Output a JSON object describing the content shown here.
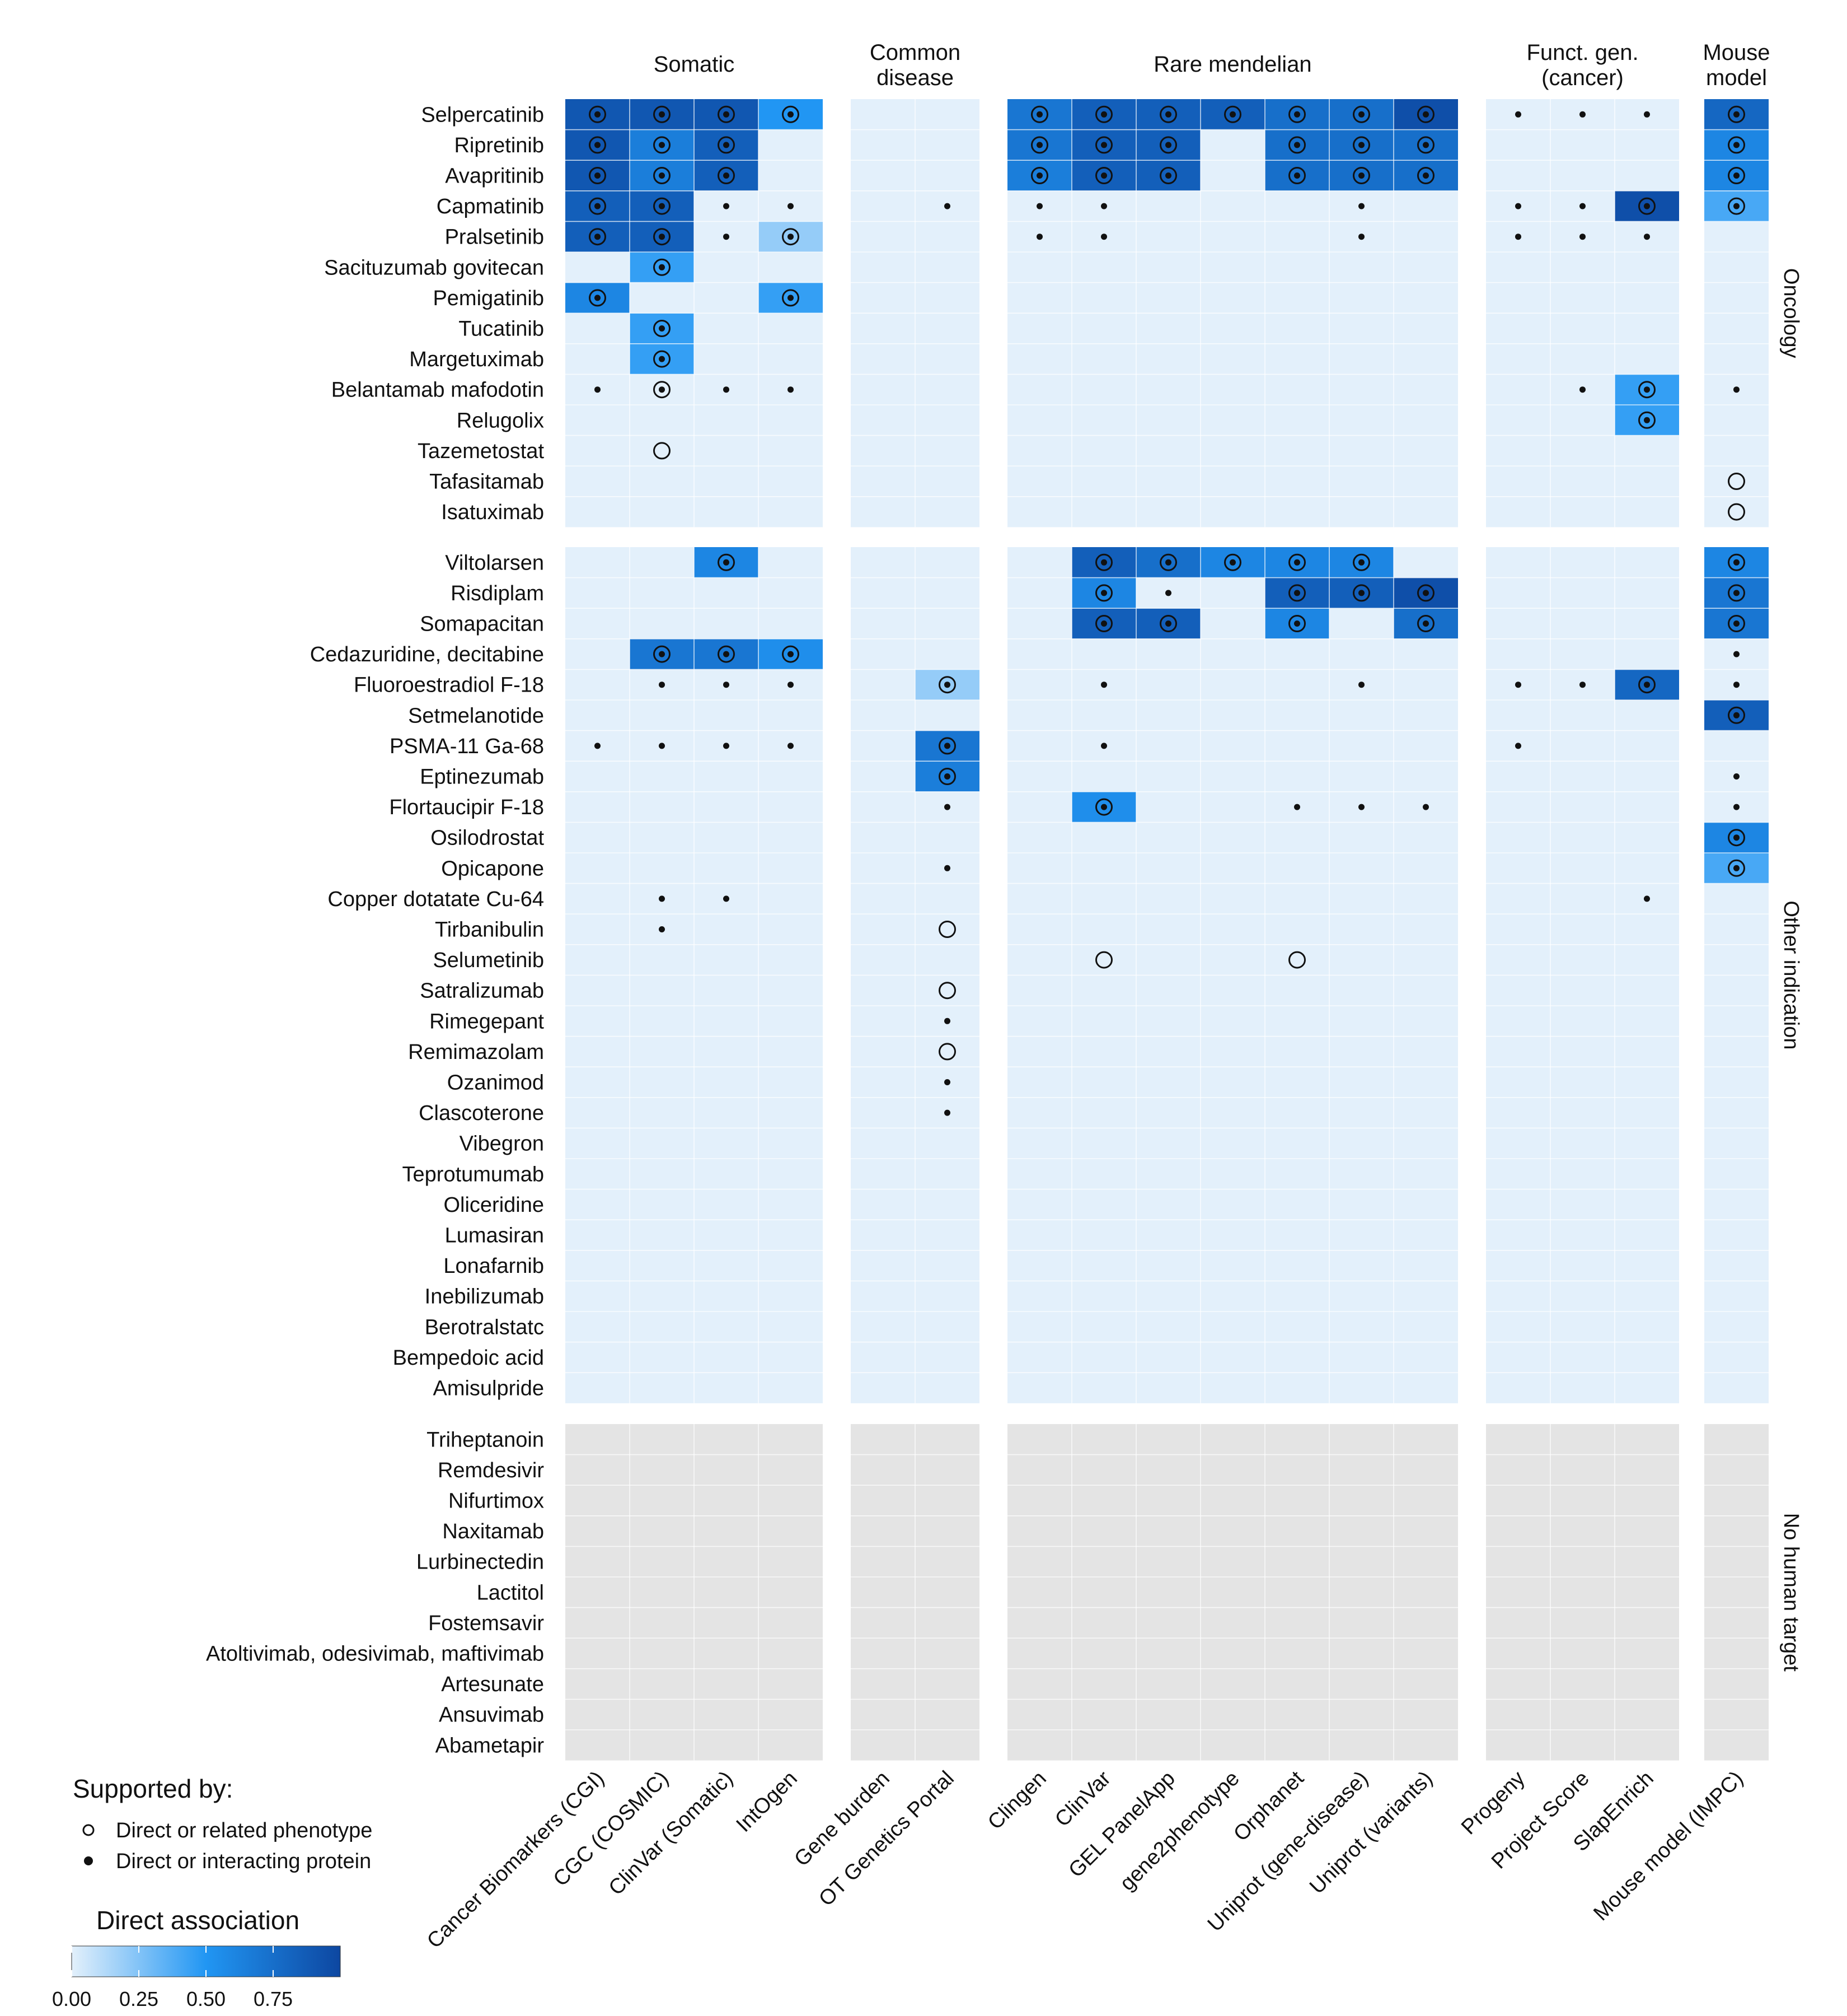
{
  "chart_data": {
    "type": "heatmap",
    "title": "",
    "column_groups": [
      {
        "name": "Somatic",
        "columns": [
          "Cancer Biomarkers (CGI)",
          "CGC (COSMIC)",
          "ClinVar (Somatic)",
          "IntOgen"
        ]
      },
      {
        "name": "Common\ndisease",
        "columns": [
          "Gene burden",
          "OT Genetics Portal"
        ]
      },
      {
        "name": "Rare mendelian",
        "columns": [
          "Clingen",
          "ClinVar",
          "GEL PanelApp",
          "gene2phenotype",
          "Orphanet",
          "Uniprot (gene-disease)",
          "Uniprot (variants)"
        ]
      },
      {
        "name": "Funct. gen.\n(cancer)",
        "columns": [
          "Progeny",
          "Project Score",
          "SlapEnrich"
        ]
      },
      {
        "name": "Mouse\nmodel",
        "columns": [
          "Mouse model (IMPC)"
        ]
      }
    ],
    "row_groups": [
      {
        "name": "Oncology",
        "gray": false,
        "rows": [
          "Selpercatinib",
          "Ripretinib",
          "Avapritinib",
          "Capmatinib",
          "Pralsetinib",
          "Sacituzumab govitecan",
          "Pemigatinib",
          "Tucatinib",
          "Margetuximab",
          "Belantamab mafodotin",
          "Relugolix",
          "Tazemetostat",
          "Tafasitamab",
          "Isatuximab"
        ]
      },
      {
        "name": "Other indication",
        "gray": false,
        "rows": [
          "Viltolarsen",
          "Risdiplam",
          "Somapacitan",
          "Cedazuridine, decitabine",
          "Fluoroestradiol F-18",
          "Setmelanotide",
          "PSMA-11 Ga-68",
          "Eptinezumab",
          "Flortaucipir F-18",
          "Osilodrostat",
          "Opicapone",
          "Copper dotatate Cu-64",
          "Tirbanibulin",
          "Selumetinib",
          "Satralizumab",
          "Rimegepant",
          "Remimazolam",
          "Ozanimod",
          "Clascoterone",
          "Vibegron",
          "Teprotumumab",
          "Oliceridine",
          "Lumasiran",
          "Lonafarnib",
          "Inebilizumab",
          "Berotralstatc",
          "Bempedoic acid",
          "Amisulpride"
        ]
      },
      {
        "name": "No human target",
        "gray": true,
        "rows": [
          "Triheptanoin",
          "Remdesivir",
          "Nifurtimox",
          "Naxitamab",
          "Lurbinectedin",
          "Lactitol",
          "Fostemsavir",
          "Atoltivimab, odesivimab, maftivimab",
          "Artesunate",
          "Ansuvimab",
          "Abametapir"
        ]
      }
    ],
    "cells": [
      [
        "Selpercatinib",
        0,
        0.9,
        "both"
      ],
      [
        "Selpercatinib",
        1,
        0.9,
        "both"
      ],
      [
        "Selpercatinib",
        2,
        0.9,
        "both"
      ],
      [
        "Selpercatinib",
        3,
        0.5,
        "both"
      ],
      [
        "Selpercatinib",
        6,
        0.7,
        "both"
      ],
      [
        "Selpercatinib",
        7,
        0.85,
        "both"
      ],
      [
        "Selpercatinib",
        8,
        0.85,
        "both"
      ],
      [
        "Selpercatinib",
        9,
        0.85,
        "both"
      ],
      [
        "Selpercatinib",
        10,
        0.75,
        "both"
      ],
      [
        "Selpercatinib",
        11,
        0.75,
        "both"
      ],
      [
        "Selpercatinib",
        12,
        0.95,
        "both"
      ],
      [
        "Selpercatinib",
        13,
        0,
        "protein"
      ],
      [
        "Selpercatinib",
        14,
        0,
        "protein"
      ],
      [
        "Selpercatinib",
        15,
        0,
        "protein"
      ],
      [
        "Selpercatinib",
        16,
        0.8,
        "both"
      ],
      [
        "Ripretinib",
        0,
        0.9,
        "both"
      ],
      [
        "Ripretinib",
        1,
        0.65,
        "both"
      ],
      [
        "Ripretinib",
        2,
        0.85,
        "both"
      ],
      [
        "Ripretinib",
        6,
        0.7,
        "both"
      ],
      [
        "Ripretinib",
        7,
        0.85,
        "both"
      ],
      [
        "Ripretinib",
        8,
        0.85,
        "both"
      ],
      [
        "Ripretinib",
        10,
        0.75,
        "both"
      ],
      [
        "Ripretinib",
        11,
        0.75,
        "both"
      ],
      [
        "Ripretinib",
        12,
        0.75,
        "both"
      ],
      [
        "Ripretinib",
        16,
        0.6,
        "both"
      ],
      [
        "Avapritinib",
        0,
        0.9,
        "both"
      ],
      [
        "Avapritinib",
        1,
        0.65,
        "both"
      ],
      [
        "Avapritinib",
        2,
        0.85,
        "both"
      ],
      [
        "Avapritinib",
        6,
        0.65,
        "both"
      ],
      [
        "Avapritinib",
        7,
        0.85,
        "both"
      ],
      [
        "Avapritinib",
        8,
        0.85,
        "both"
      ],
      [
        "Avapritinib",
        10,
        0.75,
        "both"
      ],
      [
        "Avapritinib",
        11,
        0.75,
        "both"
      ],
      [
        "Avapritinib",
        12,
        0.75,
        "both"
      ],
      [
        "Avapritinib",
        16,
        0.6,
        "both"
      ],
      [
        "Capmatinib",
        0,
        0.85,
        "both"
      ],
      [
        "Capmatinib",
        1,
        0.85,
        "both"
      ],
      [
        "Capmatinib",
        2,
        0,
        "protein"
      ],
      [
        "Capmatinib",
        3,
        0,
        "protein"
      ],
      [
        "Capmatinib",
        5,
        0,
        "protein"
      ],
      [
        "Capmatinib",
        6,
        0,
        "protein"
      ],
      [
        "Capmatinib",
        7,
        0,
        "protein"
      ],
      [
        "Capmatinib",
        11,
        0,
        "protein"
      ],
      [
        "Capmatinib",
        13,
        0,
        "protein"
      ],
      [
        "Capmatinib",
        14,
        0,
        "protein"
      ],
      [
        "Capmatinib",
        15,
        0.95,
        "both"
      ],
      [
        "Capmatinib",
        16,
        0.4,
        "both"
      ],
      [
        "Pralsetinib",
        0,
        0.85,
        "both"
      ],
      [
        "Pralsetinib",
        1,
        0.85,
        "both"
      ],
      [
        "Pralsetinib",
        2,
        0,
        "protein"
      ],
      [
        "Pralsetinib",
        3,
        0.2,
        "both"
      ],
      [
        "Pralsetinib",
        6,
        0,
        "protein"
      ],
      [
        "Pralsetinib",
        7,
        0,
        "protein"
      ],
      [
        "Pralsetinib",
        11,
        0,
        "protein"
      ],
      [
        "Pralsetinib",
        13,
        0,
        "protein"
      ],
      [
        "Pralsetinib",
        14,
        0,
        "protein"
      ],
      [
        "Pralsetinib",
        15,
        0,
        "protein"
      ],
      [
        "Sacituzumab govitecan",
        1,
        0.45,
        "both"
      ],
      [
        "Pemigatinib",
        0,
        0.6,
        "both"
      ],
      [
        "Pemigatinib",
        3,
        0.45,
        "both"
      ],
      [
        "Tucatinib",
        1,
        0.45,
        "both"
      ],
      [
        "Margetuximab",
        1,
        0.45,
        "both"
      ],
      [
        "Belantamab mafodotin",
        0,
        0,
        "protein"
      ],
      [
        "Belantamab mafodotin",
        1,
        0,
        "both"
      ],
      [
        "Belantamab mafodotin",
        2,
        0,
        "protein"
      ],
      [
        "Belantamab mafodotin",
        3,
        0,
        "protein"
      ],
      [
        "Belantamab mafodotin",
        14,
        0,
        "protein"
      ],
      [
        "Belantamab mafodotin",
        15,
        0.45,
        "both"
      ],
      [
        "Belantamab mafodotin",
        16,
        0,
        "protein"
      ],
      [
        "Relugolix",
        15,
        0.45,
        "both"
      ],
      [
        "Tazemetostat",
        1,
        0,
        "phenotype"
      ],
      [
        "Tafasitamab",
        16,
        0,
        "phenotype"
      ],
      [
        "Isatuximab",
        16,
        0,
        "phenotype"
      ],
      [
        "Viltolarsen",
        2,
        0.6,
        "both"
      ],
      [
        "Viltolarsen",
        7,
        0.85,
        "both"
      ],
      [
        "Viltolarsen",
        8,
        0.75,
        "both"
      ],
      [
        "Viltolarsen",
        9,
        0.6,
        "both"
      ],
      [
        "Viltolarsen",
        10,
        0.6,
        "both"
      ],
      [
        "Viltolarsen",
        11,
        0.6,
        "both"
      ],
      [
        "Viltolarsen",
        16,
        0.6,
        "both"
      ],
      [
        "Risdiplam",
        7,
        0.6,
        "both"
      ],
      [
        "Risdiplam",
        8,
        0,
        "protein"
      ],
      [
        "Risdiplam",
        10,
        0.85,
        "both"
      ],
      [
        "Risdiplam",
        11,
        0.85,
        "both"
      ],
      [
        "Risdiplam",
        12,
        0.95,
        "both"
      ],
      [
        "Risdiplam",
        16,
        0.7,
        "both"
      ],
      [
        "Somapacitan",
        7,
        0.85,
        "both"
      ],
      [
        "Somapacitan",
        8,
        0.85,
        "both"
      ],
      [
        "Somapacitan",
        10,
        0.6,
        "both"
      ],
      [
        "Somapacitan",
        12,
        0.75,
        "both"
      ],
      [
        "Somapacitan",
        16,
        0.7,
        "both"
      ],
      [
        "Cedazuridine, decitabine",
        1,
        0.7,
        "both"
      ],
      [
        "Cedazuridine, decitabine",
        2,
        0.7,
        "both"
      ],
      [
        "Cedazuridine, decitabine",
        3,
        0.55,
        "both"
      ],
      [
        "Cedazuridine, decitabine",
        16,
        0,
        "protein"
      ],
      [
        "Fluoroestradiol F-18",
        1,
        0,
        "protein"
      ],
      [
        "Fluoroestradiol F-18",
        2,
        0,
        "protein"
      ],
      [
        "Fluoroestradiol F-18",
        3,
        0,
        "protein"
      ],
      [
        "Fluoroestradiol F-18",
        5,
        0.2,
        "both"
      ],
      [
        "Fluoroestradiol F-18",
        7,
        0,
        "protein"
      ],
      [
        "Fluoroestradiol F-18",
        11,
        0,
        "protein"
      ],
      [
        "Fluoroestradiol F-18",
        13,
        0,
        "protein"
      ],
      [
        "Fluoroestradiol F-18",
        14,
        0,
        "protein"
      ],
      [
        "Fluoroestradiol F-18",
        15,
        0.8,
        "both"
      ],
      [
        "Fluoroestradiol F-18",
        16,
        0,
        "protein"
      ],
      [
        "Setmelanotide",
        16,
        0.85,
        "both"
      ],
      [
        "PSMA-11 Ga-68",
        0,
        0,
        "protein"
      ],
      [
        "PSMA-11 Ga-68",
        1,
        0,
        "protein"
      ],
      [
        "PSMA-11 Ga-68",
        2,
        0,
        "protein"
      ],
      [
        "PSMA-11 Ga-68",
        3,
        0,
        "protein"
      ],
      [
        "PSMA-11 Ga-68",
        5,
        0.7,
        "both"
      ],
      [
        "PSMA-11 Ga-68",
        7,
        0,
        "protein"
      ],
      [
        "PSMA-11 Ga-68",
        13,
        0,
        "protein"
      ],
      [
        "Eptinezumab",
        5,
        0.65,
        "both"
      ],
      [
        "Eptinezumab",
        16,
        0,
        "protein"
      ],
      [
        "Flortaucipir F-18",
        5,
        0,
        "protein"
      ],
      [
        "Flortaucipir F-18",
        7,
        0.55,
        "both"
      ],
      [
        "Flortaucipir F-18",
        10,
        0,
        "protein"
      ],
      [
        "Flortaucipir F-18",
        11,
        0,
        "protein"
      ],
      [
        "Flortaucipir F-18",
        12,
        0,
        "protein"
      ],
      [
        "Flortaucipir F-18",
        16,
        0,
        "protein"
      ],
      [
        "Osilodrostat",
        16,
        0.6,
        "both"
      ],
      [
        "Opicapone",
        5,
        0,
        "protein"
      ],
      [
        "Opicapone",
        16,
        0.4,
        "both"
      ],
      [
        "Copper dotatate Cu-64",
        1,
        0,
        "protein"
      ],
      [
        "Copper dotatate Cu-64",
        2,
        0,
        "protein"
      ],
      [
        "Copper dotatate Cu-64",
        15,
        0,
        "protein"
      ],
      [
        "Tirbanibulin",
        1,
        0,
        "protein"
      ],
      [
        "Tirbanibulin",
        5,
        0,
        "phenotype"
      ],
      [
        "Selumetinib",
        7,
        0,
        "phenotype"
      ],
      [
        "Selumetinib",
        10,
        0,
        "phenotype"
      ],
      [
        "Satralizumab",
        5,
        0,
        "phenotype"
      ],
      [
        "Rimegepant",
        5,
        0,
        "protein"
      ],
      [
        "Remimazolam",
        5,
        0,
        "phenotype"
      ],
      [
        "Ozanimod",
        5,
        0,
        "protein"
      ],
      [
        "Clascoterone",
        5,
        0,
        "protein"
      ]
    ],
    "legend": {
      "title": "Supported by:",
      "items": [
        {
          "marker": "open-circle",
          "label": "Direct or related phenotype"
        },
        {
          "marker": "filled-dot",
          "label": "Direct or interacting protein"
        }
      ]
    },
    "colorbar": {
      "title": "Direct association",
      "range": [
        0,
        1
      ],
      "ticks": [
        "0.00",
        "0.25",
        "0.50",
        "0.75"
      ],
      "color_low": "#e3f0fb",
      "color_mid": "#2196f3",
      "color_high": "#0d47a1"
    },
    "background_color": "#e3f0fb",
    "no_target_color": "#e4e4e4",
    "legend_placement": "bottom-left"
  }
}
